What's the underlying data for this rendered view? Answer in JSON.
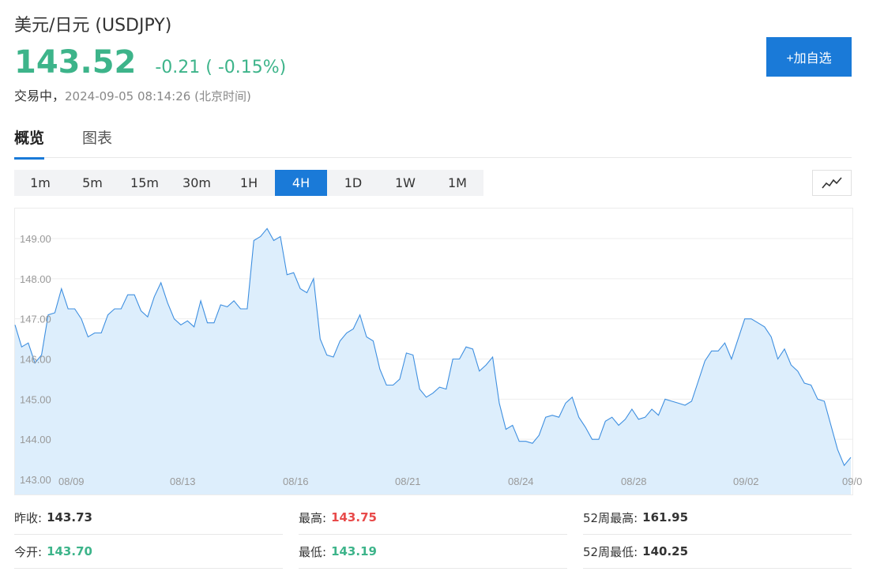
{
  "header": {
    "title": "美元/日元  (USDJPY)",
    "price": "143.52",
    "change": "-0.21 ( -0.15%)",
    "status": "交易中，",
    "timestamp": "2024-09-05 08:14:26  (北京时间)",
    "add_button": "+加自选"
  },
  "colors": {
    "up": "#e84a4a",
    "down": "#3db48a",
    "accent": "#1a7ad8",
    "line": "#3e8fe0",
    "fill": "#ddeefc"
  },
  "tabs": [
    {
      "label": "概览",
      "active": true
    },
    {
      "label": "图表",
      "active": false
    }
  ],
  "periods": [
    "1m",
    "5m",
    "15m",
    "30m",
    "1H",
    "4H",
    "1D",
    "1W",
    "1M"
  ],
  "active_period": "4H",
  "chart_type_icon": "line-chart-icon",
  "chart_data": {
    "type": "area",
    "y_ticks": [
      "143.00",
      "144.00",
      "145.00",
      "146.00",
      "147.00",
      "148.00",
      "149.00"
    ],
    "x_ticks": [
      "08/09",
      "08/13",
      "08/16",
      "08/21",
      "08/24",
      "08/28",
      "09/02",
      "09/0"
    ],
    "ylim": [
      143.0,
      149.6
    ],
    "values": [
      146.85,
      146.3,
      146.4,
      145.9,
      146.1,
      147.1,
      147.15,
      147.75,
      147.25,
      147.25,
      147.0,
      146.55,
      146.65,
      146.65,
      147.1,
      147.25,
      147.25,
      147.6,
      147.6,
      147.2,
      147.05,
      147.55,
      147.9,
      147.4,
      147.0,
      146.85,
      146.95,
      146.8,
      147.45,
      146.9,
      146.9,
      147.35,
      147.3,
      147.45,
      147.25,
      147.25,
      148.95,
      149.05,
      149.25,
      148.95,
      149.05,
      148.1,
      148.15,
      147.75,
      147.65,
      148.0,
      146.5,
      146.1,
      146.05,
      146.45,
      146.65,
      146.75,
      147.1,
      146.55,
      146.45,
      145.75,
      145.35,
      145.35,
      145.5,
      146.15,
      146.1,
      145.25,
      145.05,
      145.15,
      145.3,
      145.25,
      146.0,
      146.0,
      146.3,
      146.25,
      145.7,
      145.85,
      146.05,
      144.9,
      144.25,
      144.35,
      143.95,
      143.95,
      143.9,
      144.1,
      144.55,
      144.6,
      144.55,
      144.9,
      145.05,
      144.55,
      144.3,
      144.0,
      144.0,
      144.45,
      144.55,
      144.35,
      144.5,
      144.75,
      144.5,
      144.55,
      144.75,
      144.6,
      145.0,
      144.95,
      144.9,
      144.85,
      144.95,
      145.45,
      145.95,
      146.2,
      146.2,
      146.4,
      146.0,
      146.5,
      147.0,
      147.0,
      146.9,
      146.8,
      146.55,
      146.0,
      146.25,
      145.85,
      145.7,
      145.4,
      145.35,
      145.0,
      144.95,
      144.35,
      143.75,
      143.35,
      143.55
    ],
    "grid": true
  },
  "stats": {
    "prev_close_label": "昨收:",
    "prev_close": "143.73",
    "high_label": "最高:",
    "high": "143.75",
    "w52_high_label": "52周最高:",
    "w52_high": "161.95",
    "open_label": "今开:",
    "open": "143.70",
    "low_label": "最低:",
    "low": "143.19",
    "w52_low_label": "52周最低:",
    "w52_low": "140.25"
  }
}
